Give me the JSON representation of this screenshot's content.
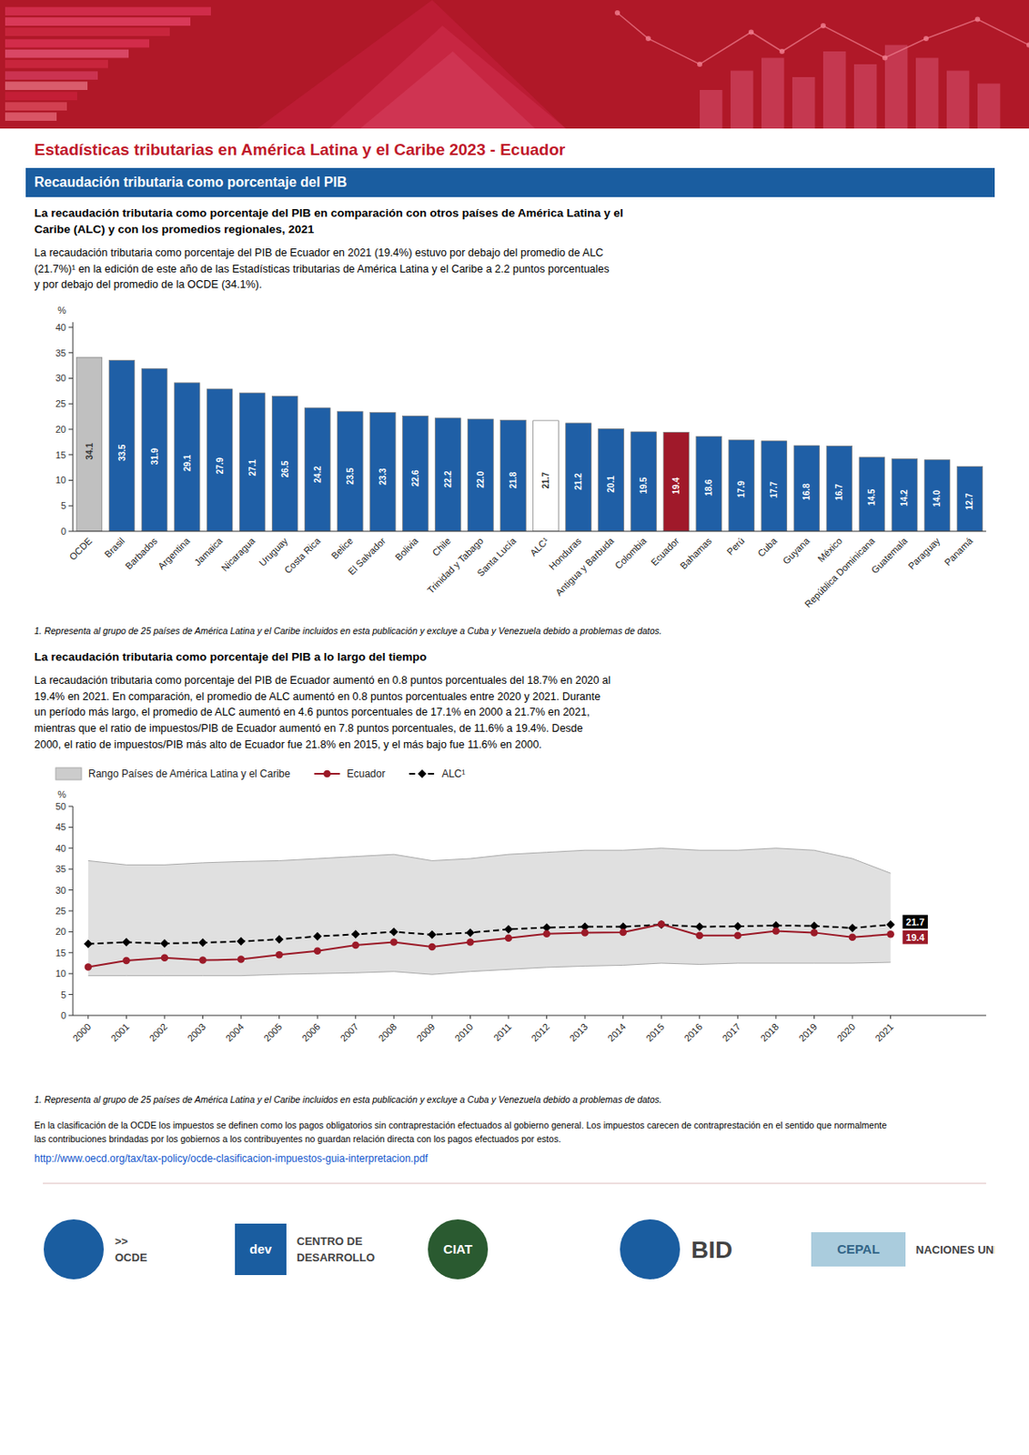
{
  "page": {
    "title": "Estadísticas tributarias en América Latina y el Caribe 2023 - Ecuador",
    "title_color": "#c0192a",
    "header_color": "#b01828",
    "section_title": "Recaudación tributaria como porcentaje del PIB",
    "section_color": "#1a5da0",
    "section_text_color": "#ffffff",
    "text_color": "#000000",
    "footer_text": "En la clasificación de la OCDE los impuestos se definen como los pagos obligatorios sin contraprestación efectuados al gobierno general. Los impuestos carecen de contraprestación en el sentido que normalmente\nlas contribuciones brindadas por los gobiernos a los contribuyentes no guardan relación directa con los pagos efectuados por estos.",
    "footer_url": "http://www.oecd.org/tax/tax-policy/ocde-clasificacion-impuestos-guia-interpretacion.pdf",
    "footer_url_color": "#1155CC",
    "logos": [
      {
        "shape": "circle",
        "color": "#1a5da0",
        "texts": [
          ">>",
          "OCDE"
        ]
      },
      {
        "shape": "square",
        "color": "#1a5da0",
        "inside": "dev",
        "texts": [
          "CENTRO DE",
          "DESARROLLO"
        ]
      },
      {
        "shape": "circle",
        "color": "#2a5a30",
        "inside": "CIAT"
      },
      {
        "shape": "circle",
        "color": "#1a5da0",
        "texts": [
          "BID"
        ]
      },
      {
        "shape": "box",
        "color": "#aaccdd",
        "inside": "CEPAL",
        "texts": [
          "NACIONES UNIDAS"
        ]
      }
    ]
  },
  "chart_data": [
    {
      "type": "bar",
      "title": "La recaudación tributaria como porcentaje del PIB en comparación con otros países de América Latina y el\nCaribe (ALC) y con los promedios regionales, 2021",
      "subtitle": "La recaudación tributaria como porcentaje del PIB de Ecuador en 2021 (19.4%) estuvo por debajo del promedio de ALC\n(21.7%)¹ en la edición de este año de las Estadísticas tributarias de América Latina y el Caribe a 2.2 puntos porcentuales\ny por debajo del promedio de la OCDE (34.1%).",
      "note": "1. Representa al grupo de 25 países de América Latina y el Caribe incluidos en esta publicación y excluye a Cuba y Venezuela debido a problemas de datos.",
      "y_label": "%",
      "categories": [
        "OCDE",
        "Brasil",
        "Barbados",
        "Argentina",
        "Jamaica",
        "Nicaragua",
        "Uruguay",
        "Costa Rica",
        "Belice",
        "El Salvador",
        "Bolivia",
        "Chile",
        "Trinidad y Tabago",
        "Santa Lucía",
        "ALC¹",
        "Honduras",
        "Antigua y Barbuda",
        "Colombia",
        "Ecuador",
        "Bahamas",
        "Perú",
        "Cuba",
        "Guyana",
        "México",
        "República Dominicana",
        "Guatemala",
        "Paraguay",
        "Panamá"
      ],
      "values": [
        34.1,
        33.5,
        31.9,
        29.1,
        27.9,
        27.1,
        26.5,
        24.2,
        23.5,
        23.3,
        22.6,
        22.2,
        22.0,
        21.8,
        21.7,
        21.2,
        20.1,
        19.5,
        19.4,
        18.6,
        17.9,
        17.7,
        16.8,
        16.7,
        14.5,
        14.2,
        14.0,
        12.7
      ],
      "value_labels": [
        "34.1",
        "33.5",
        "31.9",
        "29.1",
        "27.9",
        "27.1",
        "26.5",
        "24.2",
        "23.5",
        "23.3",
        "22.6",
        "22.2",
        "22.0",
        "21.8",
        "21.7",
        "21.2",
        "20.1",
        "19.5",
        "19.4",
        "18.6",
        "17.9",
        "17.7",
        "16.8",
        "16.7",
        "14.5",
        "14.2",
        "14.0",
        "12.7"
      ],
      "colors": [
        "#c0c0c0",
        "#1f5fa6",
        "#1f5fa6",
        "#1f5fa6",
        "#1f5fa6",
        "#1f5fa6",
        "#1f5fa6",
        "#1f5fa6",
        "#1f5fa6",
        "#1f5fa6",
        "#1f5fa6",
        "#1f5fa6",
        "#1f5fa6",
        "#1f5fa6",
        "#ffffff",
        "#1f5fa6",
        "#1f5fa6",
        "#1f5fa6",
        "#a0192a",
        "#1f5fa6",
        "#1f5fa6",
        "#1f5fa6",
        "#1f5fa6",
        "#1f5fa6",
        "#1f5fa6",
        "#1f5fa6",
        "#1f5fa6",
        "#1f5fa6"
      ],
      "data_labels": true,
      "grid": false,
      "ylim": [
        0,
        41
      ],
      "yticks": [
        0,
        5,
        10,
        15,
        20,
        25,
        30,
        35,
        40
      ]
    },
    {
      "type": "line",
      "title": "La recaudación tributaria como porcentaje del PIB a lo largo del tiempo",
      "subtitle": "La recaudación tributaria como porcentaje del PIB de Ecuador aumentó en 0.8 puntos porcentuales del 18.7% en 2020 al\n19.4% en 2021. En comparación, el promedio de ALC aumentó en 0.8 puntos porcentuales entre 2020 y 2021. Durante\nun período más largo, el promedio de ALC aumentó en 4.6 puntos porcentuales de 17.1% en 2000 a 21.7% en 2021,\nmientras que el ratio de impuestos/PIB de Ecuador aumentó en 7.8 puntos porcentuales, de 11.6% a 19.4%. Desde\n2000, el ratio de impuestos/PIB más alto de Ecuador fue 21.8% en 2015, y el más bajo fue 11.6% en 2000.",
      "note": "1. Representa al grupo de 25 países de América Latina y el Caribe incluidos en esta publicación y excluye a Cuba y Venezuela debido a problemas de datos.",
      "y_label": "%",
      "x": [
        2000,
        2001,
        2002,
        2003,
        2004,
        2005,
        2006,
        2007,
        2008,
        2009,
        2010,
        2011,
        2012,
        2013,
        2014,
        2015,
        2016,
        2017,
        2018,
        2019,
        2020,
        2021
      ],
      "series": [
        {
          "name": "Rango Países de América Latina y el Caribe",
          "type": "range",
          "color": "#cccccc",
          "low": [
            9.5,
            9.5,
            9.5,
            9.5,
            9.5,
            9.8,
            10.0,
            10.2,
            10.5,
            9.8,
            10.5,
            11.0,
            11.5,
            11.8,
            12.0,
            12.5,
            12.2,
            12.5,
            12.5,
            12.5,
            12.5,
            12.7
          ],
          "high": [
            37.0,
            36.0,
            36.0,
            36.5,
            36.8,
            37.0,
            37.5,
            38.0,
            38.5,
            37.0,
            37.5,
            38.5,
            39.0,
            39.5,
            39.5,
            40.0,
            39.5,
            39.5,
            40.0,
            39.5,
            37.5,
            34.0
          ]
        },
        {
          "name": "Ecuador",
          "type": "line",
          "color": "#9b1a28",
          "marker": "circle",
          "line_style": "solid",
          "end_label": "19.4",
          "values": [
            11.6,
            13.1,
            13.8,
            13.2,
            13.4,
            14.5,
            15.4,
            16.8,
            17.5,
            16.4,
            17.5,
            18.5,
            19.5,
            19.8,
            19.9,
            21.8,
            19.1,
            19.1,
            20.2,
            19.8,
            18.7,
            19.4
          ]
        },
        {
          "name": "ALC¹",
          "type": "line",
          "color": "#000000",
          "marker": "diamond",
          "line_style": "dashed",
          "end_label": "21.7",
          "values": [
            17.1,
            17.5,
            17.2,
            17.4,
            17.7,
            18.2,
            18.9,
            19.4,
            20.0,
            19.3,
            19.8,
            20.6,
            21.0,
            21.2,
            21.2,
            21.7,
            21.2,
            21.3,
            21.5,
            21.4,
            20.9,
            21.7
          ]
        }
      ],
      "legend": "top",
      "grid": false,
      "xlim": [
        1999.6,
        2023.5
      ],
      "xticks": [
        2000,
        2001,
        2002,
        2003,
        2004,
        2005,
        2006,
        2007,
        2008,
        2009,
        2010,
        2011,
        2012,
        2013,
        2014,
        2015,
        2016,
        2017,
        2018,
        2019,
        2020,
        2021
      ],
      "ylim": [
        0,
        50
      ],
      "yticks": [
        0,
        5,
        10,
        15,
        20,
        25,
        30,
        35,
        40,
        45,
        50
      ]
    }
  ]
}
